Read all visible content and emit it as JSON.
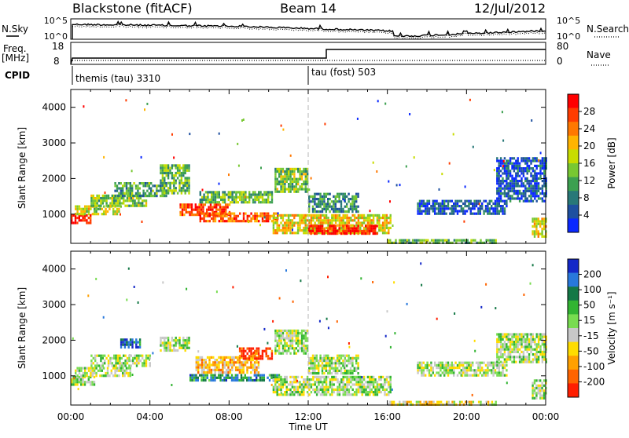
{
  "header": {
    "title": "Blackstone (fitACF)",
    "beam": "Beam 14",
    "date": "12/Jul/2012"
  },
  "strips": {
    "nsky_label": "N.Sky",
    "nsearch_label": "N.Search",
    "noise_ticks": [
      "10^5",
      "10^0"
    ],
    "freq_label": "Freq.",
    "freq_unit": "[MHz]",
    "freq_ticks": [
      "18",
      "8"
    ],
    "nave_label": "Nave",
    "nave_ticks": [
      "80",
      "0"
    ],
    "cpid_label": "CPID",
    "cpid_segments": [
      {
        "name": "themis (tau) 3310",
        "start_hour": 0
      },
      {
        "name": "tau (fost) 503",
        "start_hour": 12.0
      }
    ]
  },
  "chart_data": [
    {
      "type": "heatmap",
      "panel": "power",
      "ylabel": "Slant Range [km]",
      "xlabel": "",
      "xlim": [
        0,
        24
      ],
      "ylim": [
        180,
        4500
      ],
      "yticks": [
        "1000",
        "2000",
        "3000",
        "4000"
      ],
      "colorbar": {
        "label": "Power [dB]",
        "ticks": [
          "28",
          "24",
          "20",
          "16",
          "12",
          "8",
          "4"
        ],
        "colors": [
          "#ff0000",
          "#ff3c00",
          "#ff7800",
          "#ffb400",
          "#c8dc00",
          "#78c832",
          "#3ca050",
          "#287878",
          "#1e50a0",
          "#0a28ff"
        ]
      },
      "echo_regions": [
        {
          "t0": 0.0,
          "t1": 1.0,
          "r0": 780,
          "r1": 1000,
          "level": 0.9
        },
        {
          "t0": 0.2,
          "t1": 2.5,
          "r0": 1000,
          "r1": 1250,
          "level": 0.55
        },
        {
          "t0": 1.0,
          "t1": 3.8,
          "r0": 1250,
          "r1": 1550,
          "level": 0.45
        },
        {
          "t0": 2.2,
          "t1": 4.8,
          "r0": 1500,
          "r1": 1900,
          "level": 0.35
        },
        {
          "t0": 4.5,
          "t1": 6.0,
          "r0": 1600,
          "r1": 2400,
          "level": 0.4
        },
        {
          "t0": 5.5,
          "t1": 8.0,
          "r0": 950,
          "r1": 1300,
          "level": 0.85
        },
        {
          "t0": 6.5,
          "t1": 10.5,
          "r0": 830,
          "r1": 1050,
          "level": 0.8
        },
        {
          "t0": 6.5,
          "t1": 10.2,
          "r0": 1300,
          "r1": 1650,
          "level": 0.4
        },
        {
          "t0": 10.3,
          "t1": 12.0,
          "r0": 1600,
          "r1": 2300,
          "level": 0.45
        },
        {
          "t0": 10.2,
          "t1": 16.2,
          "r0": 500,
          "r1": 1000,
          "level": 0.6
        },
        {
          "t0": 12.0,
          "t1": 15.5,
          "r0": 450,
          "r1": 700,
          "level": 0.95
        },
        {
          "t0": 12.0,
          "t1": 14.5,
          "r0": 1100,
          "r1": 1600,
          "level": 0.3
        },
        {
          "t0": 16.0,
          "t1": 21.5,
          "r0": 180,
          "r1": 300,
          "level": 0.4
        },
        {
          "t0": 17.5,
          "t1": 22.0,
          "r0": 1000,
          "r1": 1400,
          "level": 0.15
        },
        {
          "t0": 21.5,
          "t1": 24.0,
          "r0": 1400,
          "r1": 2600,
          "level": 0.15
        },
        {
          "t0": 23.3,
          "t1": 24.0,
          "r0": 400,
          "r1": 900,
          "level": 0.6
        }
      ]
    },
    {
      "type": "heatmap",
      "panel": "velocity",
      "ylabel": "Slant Range [km]",
      "xlabel": "Time UT",
      "xlim": [
        0,
        24
      ],
      "ylim": [
        180,
        4500
      ],
      "yticks": [
        "1000",
        "2000",
        "3000",
        "4000"
      ],
      "xticks": [
        "00:00",
        "04:00",
        "08:00",
        "12:00",
        "16:00",
        "20:00",
        "00:00"
      ],
      "colorbar": {
        "label": "Velocity [m s⁻¹]",
        "ticks": [
          "200",
          "100",
          "50",
          "15",
          "-15",
          "-50",
          "-100",
          "-200"
        ],
        "colors": [
          "#1428c8",
          "#2878dc",
          "#147846",
          "#32b432",
          "#78dc50",
          "#c8c8c8",
          "#ffdc00",
          "#ffa000",
          "#ff6400",
          "#ff1e00"
        ]
      },
      "echo_regions": [
        {
          "t0": 0.0,
          "t1": 1.2,
          "r0": 780,
          "r1": 1000,
          "level": 0.5
        },
        {
          "t0": 0.2,
          "t1": 3.0,
          "r0": 1000,
          "r1": 1250,
          "level": 0.5
        },
        {
          "t0": 1.0,
          "t1": 4.0,
          "r0": 1250,
          "r1": 1600,
          "level": 0.5
        },
        {
          "t0": 2.5,
          "t1": 3.5,
          "r0": 1800,
          "r1": 2050,
          "level": 0.85
        },
        {
          "t0": 4.5,
          "t1": 6.0,
          "r0": 1700,
          "r1": 2100,
          "level": 0.5
        },
        {
          "t0": 6.0,
          "t1": 10.5,
          "r0": 850,
          "r1": 1050,
          "level": 0.75
        },
        {
          "t0": 6.3,
          "t1": 9.5,
          "r0": 1100,
          "r1": 1550,
          "level": 0.3
        },
        {
          "t0": 8.5,
          "t1": 10.2,
          "r0": 1450,
          "r1": 1800,
          "level": 0.05
        },
        {
          "t0": 10.3,
          "t1": 12.0,
          "r0": 1600,
          "r1": 2300,
          "level": 0.5
        },
        {
          "t0": 10.2,
          "t1": 16.2,
          "r0": 500,
          "r1": 1000,
          "level": 0.5
        },
        {
          "t0": 12.0,
          "t1": 14.5,
          "r0": 1100,
          "r1": 1600,
          "level": 0.5
        },
        {
          "t0": 16.0,
          "t1": 21.5,
          "r0": 180,
          "r1": 300,
          "level": 0.4
        },
        {
          "t0": 17.5,
          "t1": 22.0,
          "r0": 1000,
          "r1": 1400,
          "level": 0.5
        },
        {
          "t0": 21.5,
          "t1": 24.0,
          "r0": 1400,
          "r1": 2200,
          "level": 0.5
        },
        {
          "t0": 23.3,
          "t1": 24.0,
          "r0": 400,
          "r1": 900,
          "level": 0.5
        }
      ]
    }
  ]
}
